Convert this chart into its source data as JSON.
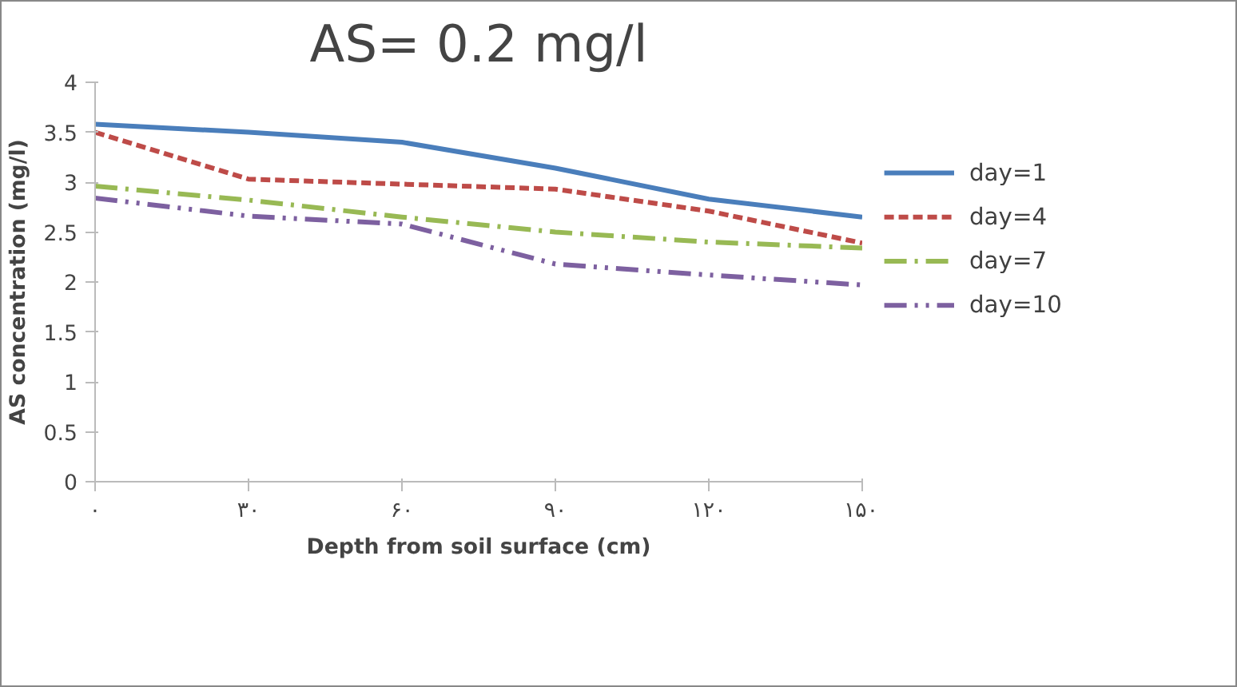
{
  "chart_data": {
    "type": "line",
    "title": "AS= 0.2 mg/l",
    "xlabel": "Depth from soil surface (cm)",
    "ylabel": "AS concentration (mg/l)",
    "categories": [
      "۰",
      "۳۰",
      "۶۰",
      "۹۰",
      "۱۲۰",
      "۱۵۰"
    ],
    "series": [
      {
        "name": "day=1",
        "color": "#4a7ebb",
        "line_style": "solid",
        "values": [
          3.58,
          3.5,
          3.4,
          3.14,
          2.83,
          2.65
        ]
      },
      {
        "name": "day=4",
        "color": "#be4b48",
        "line_style": "dashed",
        "values": [
          3.5,
          3.03,
          2.98,
          2.93,
          2.71,
          2.39
        ]
      },
      {
        "name": "day=7",
        "color": "#98b954",
        "line_style": "dashdot",
        "values": [
          2.96,
          2.82,
          2.65,
          2.5,
          2.4,
          2.34
        ]
      },
      {
        "name": "day=10",
        "color": "#7d60a0",
        "line_style": "dashdotdot",
        "values": [
          2.84,
          2.66,
          2.58,
          2.18,
          2.07,
          1.97
        ]
      }
    ],
    "ylim": [
      0,
      4
    ],
    "yticks": [
      0,
      0.5,
      1,
      1.5,
      2,
      2.5,
      3,
      3.5,
      4
    ],
    "grid": false,
    "legend": "right",
    "marker": "none"
  }
}
